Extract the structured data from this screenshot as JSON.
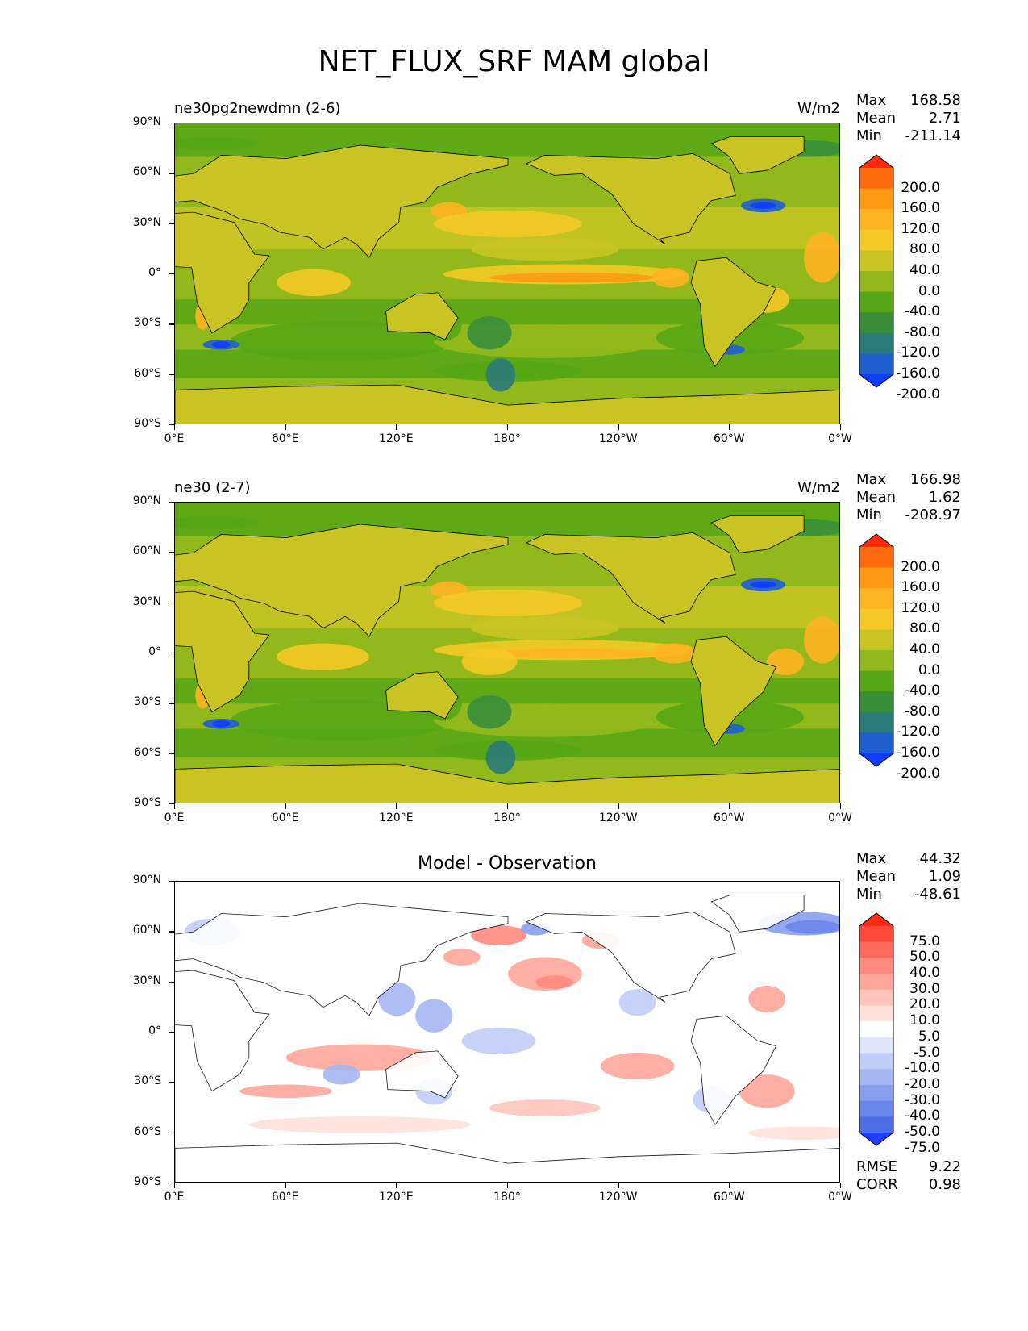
{
  "figure_title": "NET_FLUX_SRF MAM global",
  "chart_data": [
    {
      "type": "heatmap",
      "subtitle": "ne30pg2newdmn (2-6)",
      "units": "W/m2",
      "stats": {
        "max": "168.58",
        "mean": "2.71",
        "min": "-211.14"
      },
      "colorbar_levels": [
        "200.0",
        "160.0",
        "120.0",
        "80.0",
        "40.0",
        "0.0",
        "-40.0",
        "-80.0",
        "-120.0",
        "-160.0",
        "-200.0"
      ],
      "colors": [
        "#ff2a0f",
        "#ff6a0d",
        "#ff9a14",
        "#ffb421",
        "#f5c926",
        "#c9c424",
        "#92b81b",
        "#56a615",
        "#3a8e3b",
        "#2b7b7a",
        "#1f5fcf",
        "#0f3dff"
      ],
      "xticks": [
        "0°E",
        "60°E",
        "120°E",
        "180°",
        "120°W",
        "60°W",
        "0°W"
      ],
      "yticks": [
        "90°N",
        "60°N",
        "30°N",
        "0°",
        "30°S",
        "60°S",
        "90°S"
      ]
    },
    {
      "type": "heatmap",
      "subtitle": "ne30 (2-7)",
      "units": "W/m2",
      "stats": {
        "max": "166.98",
        "mean": "1.62",
        "min": "-208.97"
      },
      "colorbar_levels": [
        "200.0",
        "160.0",
        "120.0",
        "80.0",
        "40.0",
        "0.0",
        "-40.0",
        "-80.0",
        "-120.0",
        "-160.0",
        "-200.0"
      ],
      "colors": [
        "#ff2a0f",
        "#ff6a0d",
        "#ff9a14",
        "#ffb421",
        "#f5c926",
        "#c9c424",
        "#92b81b",
        "#56a615",
        "#3a8e3b",
        "#2b7b7a",
        "#1f5fcf",
        "#0f3dff"
      ],
      "xticks": [
        "0°E",
        "60°E",
        "120°E",
        "180°",
        "120°W",
        "60°W",
        "0°W"
      ],
      "yticks": [
        "90°N",
        "60°N",
        "30°N",
        "0°",
        "30°S",
        "60°S",
        "90°S"
      ]
    },
    {
      "type": "heatmap",
      "subtitle": "Model - Observation",
      "units": "",
      "stats": {
        "max": "44.32",
        "mean": "1.09",
        "min": "-48.61"
      },
      "colorbar_levels": [
        "75.0",
        "50.0",
        "40.0",
        "30.0",
        "20.0",
        "10.0",
        "5.0",
        "-5.0",
        "-10.0",
        "-20.0",
        "-30.0",
        "-40.0",
        "-50.0",
        "-75.0"
      ],
      "colors": [
        "#ff2a12",
        "#ff4a3a",
        "#ff6a5e",
        "#ff8a7e",
        "#ffa69a",
        "#ffc4bb",
        "#ffe0da",
        "#ffffff",
        "#dfe5fb",
        "#c2cdf7",
        "#a5b6f3",
        "#889eef",
        "#6a86eb",
        "#4c6ee7",
        "#1f3dff"
      ],
      "xticks": [
        "0°E",
        "60°E",
        "120°E",
        "180°",
        "120°W",
        "60°W",
        "0°W"
      ],
      "yticks": [
        "90°N",
        "60°N",
        "30°N",
        "0°",
        "30°S",
        "60°S",
        "90°S"
      ],
      "rmse": "9.22",
      "corr": "0.98"
    }
  ],
  "labels": {
    "max": "Max",
    "mean": "Mean",
    "min": "Min",
    "rmse": "RMSE",
    "corr": "CORR"
  }
}
